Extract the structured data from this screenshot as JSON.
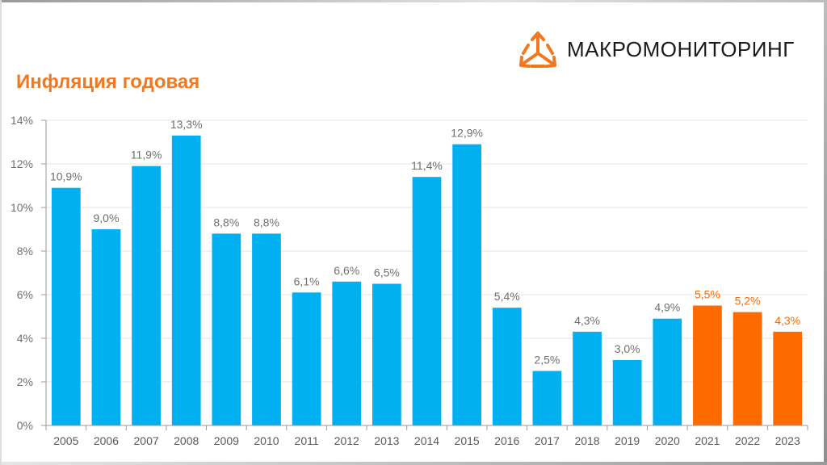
{
  "header": {
    "brand": "МАКРОМОНИТОРИНГ",
    "logo_icon": "triangle-arrows-logo-icon"
  },
  "chart_data": {
    "type": "bar",
    "title": "Инфляция годовая",
    "xlabel": "",
    "ylabel": "",
    "categories": [
      "2005",
      "2006",
      "2007",
      "2008",
      "2009",
      "2010",
      "2011",
      "2012",
      "2013",
      "2014",
      "2015",
      "2016",
      "2017",
      "2018",
      "2019",
      "2020",
      "2021",
      "2022",
      "2023"
    ],
    "values": [
      10.9,
      9.0,
      11.9,
      13.3,
      8.8,
      8.8,
      6.1,
      6.6,
      6.5,
      11.4,
      12.9,
      5.4,
      2.5,
      4.3,
      3.0,
      4.9,
      5.5,
      5.2,
      4.3
    ],
    "value_labels": [
      "10,9%",
      "9,0%",
      "11,9%",
      "13,3%",
      "8,8%",
      "8,8%",
      "6,1%",
      "6,6%",
      "6,5%",
      "11,4%",
      "12,9%",
      "5,4%",
      "2,5%",
      "4,3%",
      "3,0%",
      "4,9%",
      "5,5%",
      "5,2%",
      "4,3%"
    ],
    "ylim": [
      0,
      14
    ],
    "yticks": [
      "0%",
      "2%",
      "4%",
      "6%",
      "8%",
      "10%",
      "12%",
      "14%"
    ],
    "grid": true,
    "colors": {
      "default": "#00b0f0",
      "highlight": "#ff6a00",
      "label_default": "#6f6f6f",
      "label_highlight": "#ff6a00",
      "title": "#f07820"
    },
    "highlight_from_index": 16
  }
}
